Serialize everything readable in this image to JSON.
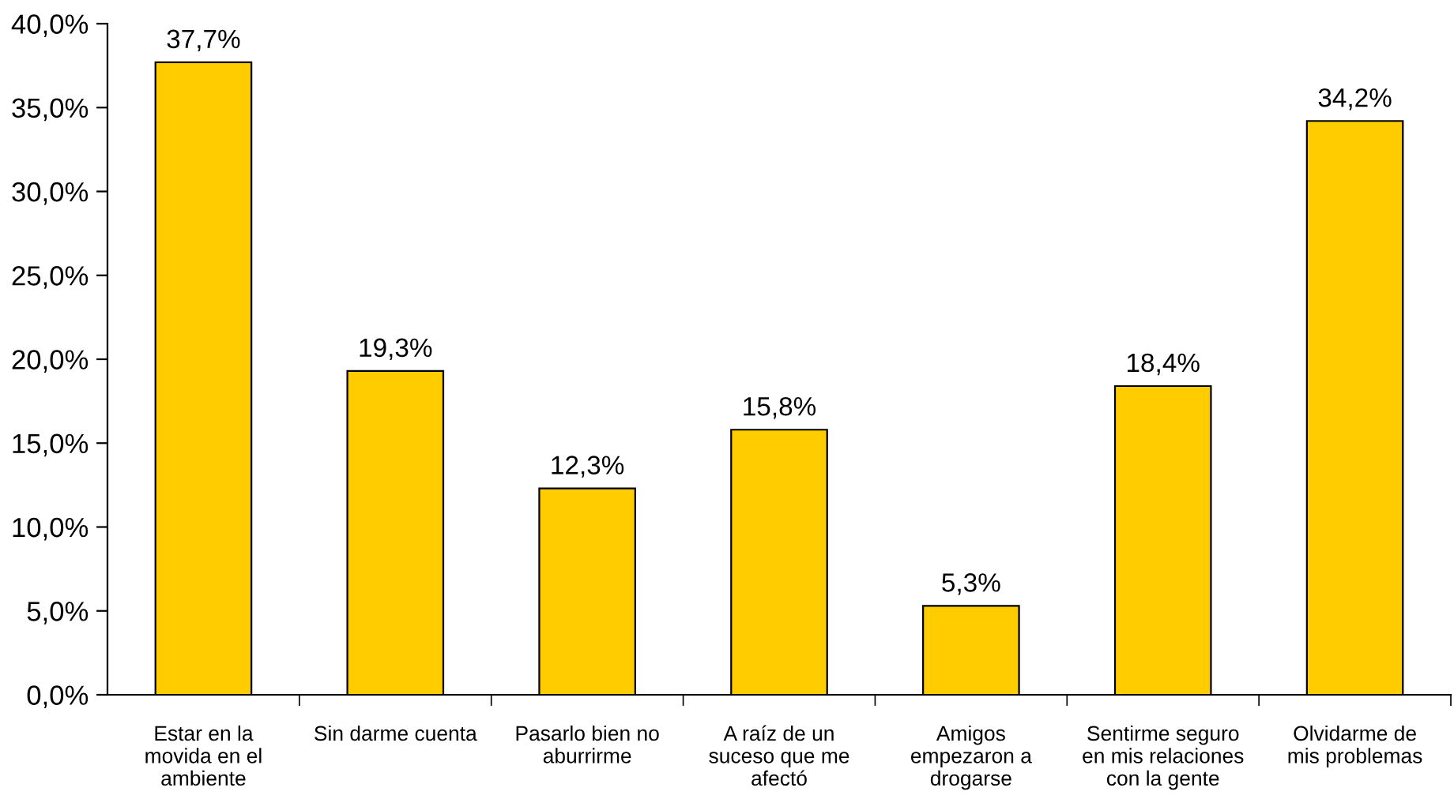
{
  "chart_data": {
    "type": "bar",
    "categories": [
      "Estar en la\nmovida en el\nambiente",
      "Sin darme cuenta",
      "Pasarlo bien no\naburrirme",
      "A raíz de un\nsuceso que me\nafectó",
      "Amigos\nempezaron a\ndrogarse",
      "Sentirme seguro\nen mis relaciones\ncon la gente",
      "Olvidarme de\nmis problemas"
    ],
    "values": [
      37.7,
      19.3,
      12.3,
      15.8,
      5.3,
      18.4,
      34.2
    ],
    "value_labels": [
      "37,7%",
      "19,3%",
      "12,3%",
      "15,8%",
      "5,3%",
      "18,4%",
      "34,2%"
    ],
    "color": "#ffcc00",
    "ylim": [
      0,
      40
    ],
    "yticks": [
      {
        "value": 0,
        "label": "0,0%"
      },
      {
        "value": 5,
        "label": "5,0%"
      },
      {
        "value": 10,
        "label": "10,0%"
      },
      {
        "value": 15,
        "label": "15,0%"
      },
      {
        "value": 20,
        "label": "20,0%"
      },
      {
        "value": 25,
        "label": "25,0%"
      },
      {
        "value": 30,
        "label": "30,0%"
      },
      {
        "value": 35,
        "label": "35,0%"
      },
      {
        "value": 40,
        "label": "40,0%"
      }
    ],
    "grid": false,
    "legend": false
  }
}
